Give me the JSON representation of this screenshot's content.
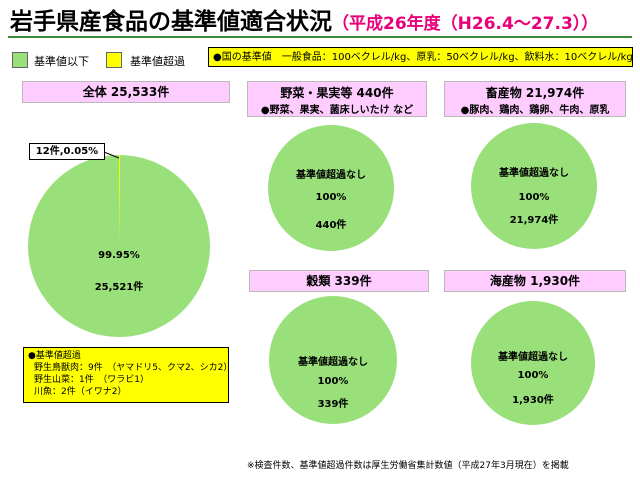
{
  "title": {
    "main": "岩手県産食品の基準値適合状況",
    "sub": "（平成26年度（H26.4～27.3））"
  },
  "legend": [
    {
      "label": "基準値以下",
      "color": "#99e07a"
    },
    {
      "label": "基準値超過",
      "color": "#ffff00"
    }
  ],
  "standards_note": "●国の基準値　一般食品：100ベクレル/kg、原乳：50ベクレル/kg、飲料水：10ベクレル/kg",
  "panels": {
    "total": {
      "header": "全体 25,533件",
      "pct": "99.95%",
      "count": "25,521件",
      "callout": "12件,0.05%"
    },
    "vegetables": {
      "header": "野菜・果実等 440件",
      "subheader": "●野菜、果実、菌床しいたけ など",
      "status": "基準値超過なし",
      "pct": "100%",
      "count": "440件"
    },
    "livestock": {
      "header": "畜産物 21,974件",
      "subheader": "●豚肉、鶏肉、鶏卵、牛肉、原乳",
      "status": "基準値超過なし",
      "pct": "100%",
      "count": "21,974件"
    },
    "grains": {
      "header": "穀類 339件",
      "status": "基準値超過なし",
      "pct": "100%",
      "count": "339件"
    },
    "seafood": {
      "header": "海産物 1,930件",
      "status": "基準値超過なし",
      "pct": "100%",
      "count": "1,930件"
    }
  },
  "exceed_details": {
    "title": "●基準値超過",
    "lines": [
      "野生鳥獣肉：9件　（ヤマドリ5、クマ2、シカ2）",
      "野生山菜：1件　（ワラビ1）",
      "川魚：2件（イワナ2）"
    ]
  },
  "footnote": "※検査件数、基準値超過件数は厚生労働省集計数値（平成27年3月現在）を掲載",
  "chart_data": [
    {
      "type": "pie",
      "title": "全体 25,533件",
      "categories": [
        "基準値以下",
        "基準値超過"
      ],
      "values": [
        25521,
        12
      ],
      "colors": [
        "#99e07a",
        "#ffff00"
      ]
    },
    {
      "type": "pie",
      "title": "野菜・果実等 440件",
      "categories": [
        "基準値以下",
        "基準値超過"
      ],
      "values": [
        440,
        0
      ],
      "colors": [
        "#99e07a",
        "#ffff00"
      ]
    },
    {
      "type": "pie",
      "title": "畜産物 21,974件",
      "categories": [
        "基準値以下",
        "基準値超過"
      ],
      "values": [
        21974,
        0
      ],
      "colors": [
        "#99e07a",
        "#ffff00"
      ]
    },
    {
      "type": "pie",
      "title": "穀類 339件",
      "categories": [
        "基準値以下",
        "基準値超過"
      ],
      "values": [
        339,
        0
      ],
      "colors": [
        "#99e07a",
        "#ffff00"
      ]
    },
    {
      "type": "pie",
      "title": "海産物 1,930件",
      "categories": [
        "基準値以下",
        "基準値超過"
      ],
      "values": [
        1930,
        0
      ],
      "colors": [
        "#99e07a",
        "#ffff00"
      ]
    }
  ]
}
